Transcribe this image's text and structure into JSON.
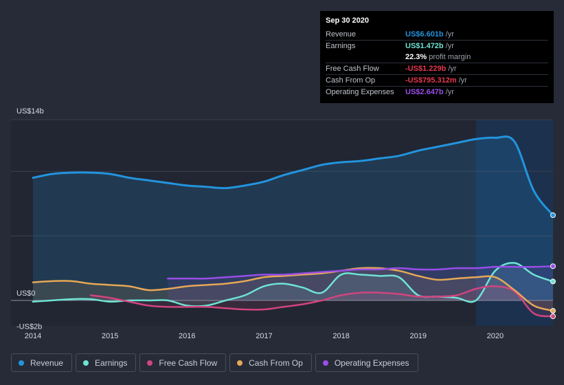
{
  "colors": {
    "revenue": "#2394df",
    "earnings": "#6fe3d5",
    "free_cash_flow": "#d0457f",
    "cash_from_op": "#e7a856",
    "operating_expenses": "#9a4de8"
  },
  "tooltip": {
    "date": "Sep 30 2020",
    "rows": [
      {
        "label": "Revenue",
        "value": "US$6.601b",
        "unit": "/yr",
        "color": "#2394df"
      },
      {
        "label": "Earnings",
        "value": "US$1.472b",
        "unit": "/yr",
        "color": "#6fe3d5"
      },
      {
        "label": "",
        "value": "22.3%",
        "unit": "profit margin",
        "color": "#ffffff"
      },
      {
        "label": "Free Cash Flow",
        "value": "-US$1.229b",
        "unit": "/yr",
        "color": "#e8384f"
      },
      {
        "label": "Cash From Op",
        "value": "-US$795.312m",
        "unit": "/yr",
        "color": "#e8384f"
      },
      {
        "label": "Operating Expenses",
        "value": "US$2.647b",
        "unit": "/yr",
        "color": "#9a4de8"
      }
    ]
  },
  "legend": [
    {
      "label": "Revenue",
      "icon": "dot-icon",
      "color": "#2394df"
    },
    {
      "label": "Earnings",
      "icon": "dot-icon",
      "color": "#6fe3d5"
    },
    {
      "label": "Free Cash Flow",
      "icon": "dot-icon",
      "color": "#d0457f"
    },
    {
      "label": "Cash From Op",
      "icon": "dot-icon",
      "color": "#e7a856"
    },
    {
      "label": "Operating Expenses",
      "icon": "dot-icon",
      "color": "#9a4de8"
    }
  ],
  "chart_data": {
    "type": "area",
    "y_tick_labels": [
      "US$14b",
      "US$0",
      "-US$2b"
    ],
    "x_tick_labels": [
      "2014",
      "2015",
      "2016",
      "2017",
      "2018",
      "2019",
      "2020"
    ],
    "ylim": [
      -2,
      14
    ],
    "xlim": [
      2014.0,
      2020.75
    ],
    "grid": true,
    "legend_position": "bottom",
    "highlight_range": [
      2019.75,
      2020.75
    ],
    "series": [
      {
        "name": "Revenue",
        "x": [
          2014.0,
          2014.25,
          2014.5,
          2014.75,
          2015.0,
          2015.25,
          2015.5,
          2015.75,
          2016.0,
          2016.25,
          2016.5,
          2016.75,
          2017.0,
          2017.25,
          2017.5,
          2017.75,
          2018.0,
          2018.25,
          2018.5,
          2018.75,
          2019.0,
          2019.25,
          2019.5,
          2019.75,
          2020.0,
          2020.25,
          2020.5,
          2020.75
        ],
        "values": [
          9.5,
          9.8,
          9.9,
          9.9,
          9.8,
          9.5,
          9.3,
          9.1,
          8.9,
          8.8,
          8.7,
          8.9,
          9.2,
          9.7,
          10.1,
          10.5,
          10.7,
          10.8,
          11.0,
          11.2,
          11.6,
          11.9,
          12.2,
          12.5,
          12.6,
          12.3,
          8.5,
          6.6
        ]
      },
      {
        "name": "Earnings",
        "x": [
          2014.0,
          2014.5,
          2014.75,
          2015.0,
          2015.25,
          2015.5,
          2015.75,
          2016.0,
          2016.25,
          2016.5,
          2016.75,
          2017.0,
          2017.25,
          2017.5,
          2017.75,
          2018.0,
          2018.25,
          2018.5,
          2018.75,
          2019.0,
          2019.25,
          2019.5,
          2019.75,
          2020.0,
          2020.25,
          2020.5,
          2020.75
        ],
        "values": [
          -0.1,
          0.1,
          0.1,
          -0.1,
          0.0,
          0.0,
          0.0,
          -0.4,
          -0.4,
          0.0,
          0.4,
          1.1,
          1.3,
          1.0,
          0.6,
          2.0,
          2.0,
          1.9,
          1.8,
          0.4,
          0.3,
          0.2,
          0.0,
          2.3,
          2.9,
          2.0,
          1.47
        ]
      },
      {
        "name": "Free Cash Flow",
        "x": [
          2014.75,
          2015.0,
          2015.25,
          2015.5,
          2015.75,
          2016.0,
          2016.25,
          2016.5,
          2016.75,
          2017.0,
          2017.25,
          2017.5,
          2017.75,
          2018.0,
          2018.25,
          2018.5,
          2018.75,
          2019.0,
          2019.25,
          2019.5,
          2019.75,
          2020.0,
          2020.25,
          2020.5,
          2020.75
        ],
        "values": [
          0.4,
          0.2,
          -0.1,
          -0.4,
          -0.5,
          -0.5,
          -0.5,
          -0.6,
          -0.7,
          -0.7,
          -0.5,
          -0.3,
          0.0,
          0.4,
          0.6,
          0.6,
          0.5,
          0.3,
          0.3,
          0.4,
          0.9,
          1.1,
          0.7,
          -1.0,
          -1.23
        ]
      },
      {
        "name": "Cash From Op",
        "x": [
          2014.0,
          2014.25,
          2014.5,
          2014.75,
          2015.0,
          2015.25,
          2015.5,
          2015.75,
          2016.0,
          2016.25,
          2016.5,
          2016.75,
          2017.0,
          2017.25,
          2017.5,
          2017.75,
          2018.0,
          2018.25,
          2018.5,
          2018.75,
          2019.0,
          2019.25,
          2019.5,
          2019.75,
          2020.0,
          2020.25,
          2020.5,
          2020.75
        ],
        "values": [
          1.4,
          1.5,
          1.5,
          1.3,
          1.2,
          1.1,
          0.8,
          0.9,
          1.1,
          1.2,
          1.3,
          1.5,
          1.8,
          1.9,
          2.0,
          2.1,
          2.3,
          2.5,
          2.5,
          2.3,
          1.9,
          1.6,
          1.7,
          1.8,
          1.8,
          0.8,
          -0.4,
          -0.8
        ]
      },
      {
        "name": "Operating Expenses",
        "x": [
          2015.75,
          2016.0,
          2016.25,
          2016.5,
          2016.75,
          2017.0,
          2017.25,
          2017.5,
          2017.75,
          2018.0,
          2018.25,
          2018.5,
          2018.75,
          2019.0,
          2019.25,
          2019.5,
          2019.75,
          2020.0,
          2020.25,
          2020.5,
          2020.75
        ],
        "values": [
          1.7,
          1.7,
          1.7,
          1.8,
          1.9,
          2.0,
          2.0,
          2.1,
          2.2,
          2.3,
          2.4,
          2.4,
          2.5,
          2.4,
          2.4,
          2.5,
          2.5,
          2.6,
          2.6,
          2.6,
          2.65
        ]
      }
    ]
  }
}
